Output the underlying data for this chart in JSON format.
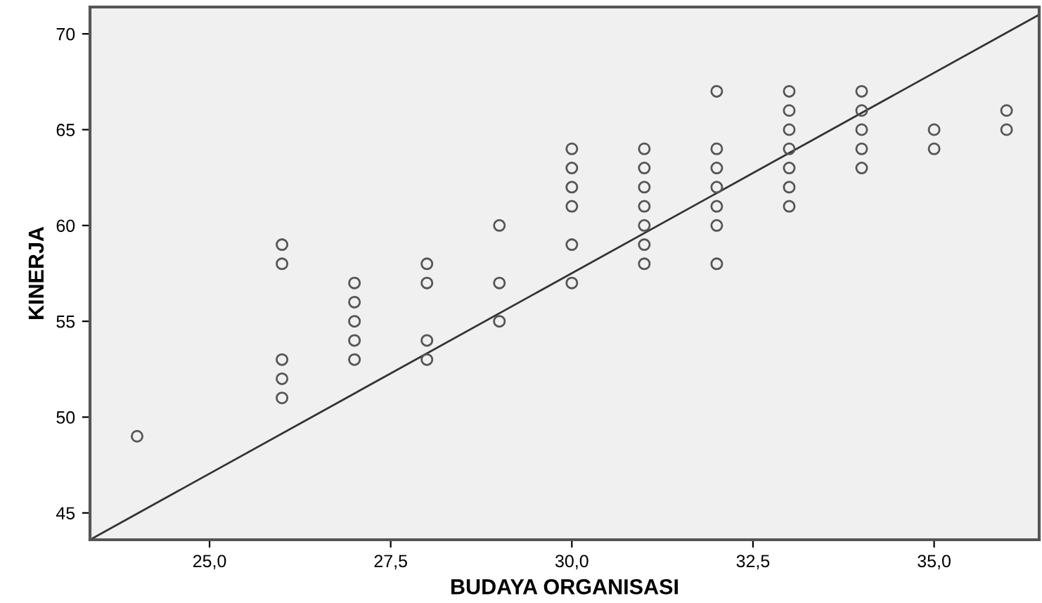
{
  "chart_data": {
    "type": "scatter",
    "xlabel": "BUDAYA ORGANISASI",
    "ylabel": "KINERJA",
    "xlim": [
      23.35,
      36.45
    ],
    "ylim": [
      43.6,
      71.4
    ],
    "xticks": [
      {
        "value": 25,
        "label": "25,0"
      },
      {
        "value": 27.5,
        "label": "27,5"
      },
      {
        "value": 30,
        "label": "30,0"
      },
      {
        "value": 32.5,
        "label": "32,5"
      },
      {
        "value": 35,
        "label": "35,0"
      }
    ],
    "yticks": [
      45,
      50,
      55,
      60,
      65,
      70
    ],
    "grid": false,
    "marker": "circle",
    "series": [
      {
        "color": "#555555",
        "x": [
          24,
          26,
          26,
          26,
          26,
          26,
          27,
          27,
          27,
          27,
          27,
          28,
          28,
          28,
          28,
          29,
          29,
          29,
          30,
          30,
          30,
          30,
          30,
          30,
          31,
          31,
          31,
          31,
          31,
          31,
          31,
          32,
          32,
          32,
          32,
          32,
          32,
          32,
          33,
          33,
          33,
          33,
          33,
          33,
          33,
          34,
          34,
          34,
          34,
          34,
          35,
          35,
          36,
          36
        ],
        "values": [
          49,
          59,
          58,
          53,
          52,
          51,
          57,
          56,
          55,
          54,
          53,
          58,
          57,
          54,
          53,
          60,
          57,
          55,
          64,
          63,
          62,
          61,
          59,
          57,
          64,
          63,
          62,
          61,
          60,
          59,
          58,
          67,
          64,
          63,
          62,
          61,
          60,
          58,
          67,
          66,
          65,
          64,
          63,
          62,
          61,
          67,
          66,
          65,
          64,
          63,
          65,
          64,
          66,
          65
        ]
      },
      {
        "type": "line",
        "color": "#333333",
        "marker": "none",
        "x": [
          23.35,
          36.45
        ],
        "values": [
          43.6,
          71.0
        ]
      }
    ]
  }
}
